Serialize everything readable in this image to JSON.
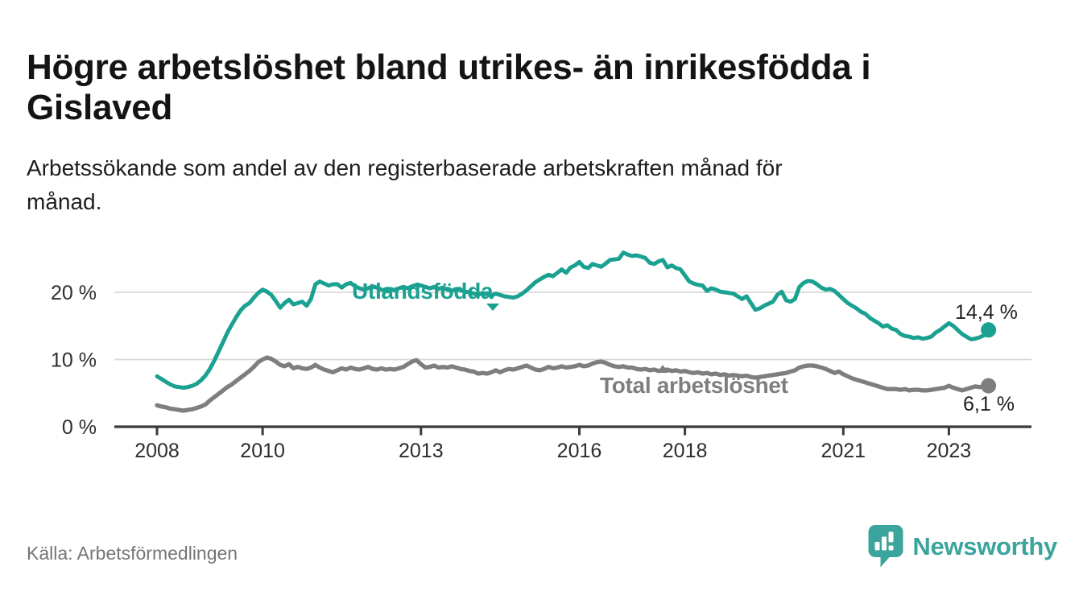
{
  "header": {
    "title": "Högre arbetslöshet bland utrikes- än inrikesfödda i Gislaved",
    "subtitle": "Arbetssökande som andel av den registerbaserade arbetskraften månad för månad."
  },
  "footer": {
    "source": "Källa: Arbetsförmedlingen",
    "brand": "Newsworthy",
    "logo_icon": "newsworthy-pin-barchart-icon",
    "brand_color": "#3ba49c"
  },
  "chart_data": {
    "type": "line",
    "title": "Högre arbetslöshet bland utrikes- än inrikesfödda i Gislaved",
    "x_unit": "month",
    "x_range": [
      "2008-01",
      "2023-10"
    ],
    "grid": "horizontal",
    "colors": {
      "axis": "#3a3a3a",
      "gridline": "#d9d9d9",
      "tick_text": "#2e2e2e"
    },
    "x_axis": {
      "ticks": [
        {
          "year": 2008,
          "label": "2008"
        },
        {
          "year": 2010,
          "label": "2010"
        },
        {
          "year": 2013,
          "label": "2013"
        },
        {
          "year": 2016,
          "label": "2016"
        },
        {
          "year": 2018,
          "label": "2018"
        },
        {
          "year": 2021,
          "label": "2021"
        },
        {
          "year": 2023,
          "label": "2023"
        }
      ]
    },
    "y_axis": {
      "ticks": [
        {
          "value": 0,
          "label": "0 %"
        },
        {
          "value": 10,
          "label": "10 %"
        },
        {
          "value": 20,
          "label": "20 %"
        }
      ],
      "gridline_values": [
        10,
        20
      ],
      "ylim": [
        0,
        30
      ]
    },
    "series": [
      {
        "name": "Utlandsfödda",
        "color": "#1aa191",
        "end_label": "14,4 %",
        "end_value": 14.4,
        "values": [
          7.5,
          7.1,
          6.7,
          6.3,
          6.0,
          5.9,
          5.8,
          5.9,
          6.1,
          6.4,
          6.9,
          7.6,
          8.6,
          9.8,
          11.2,
          12.6,
          14.0,
          15.2,
          16.3,
          17.3,
          18.0,
          18.4,
          19.2,
          19.9,
          20.4,
          20.1,
          19.6,
          18.7,
          17.7,
          18.4,
          18.9,
          18.2,
          18.4,
          18.6,
          18.0,
          19.0,
          21.2,
          21.6,
          21.3,
          21.0,
          21.2,
          21.2,
          20.7,
          21.2,
          21.4,
          20.9,
          20.6,
          20.4,
          20.6,
          20.9,
          20.7,
          20.4,
          20.2,
          20.5,
          20.3,
          20.6,
          20.8,
          20.6,
          20.9,
          21.1,
          21.0,
          20.8,
          20.6,
          20.8,
          20.5,
          20.7,
          20.4,
          20.2,
          20.5,
          20.3,
          20.1,
          20.0,
          19.8,
          19.6,
          19.9,
          19.7,
          19.5,
          19.8,
          19.6,
          19.4,
          19.3,
          19.2,
          19.4,
          19.8,
          20.3,
          20.9,
          21.5,
          21.9,
          22.3,
          22.6,
          22.4,
          22.9,
          23.4,
          22.9,
          23.7,
          24.0,
          24.5,
          23.8,
          23.6,
          24.2,
          24.0,
          23.8,
          24.3,
          24.8,
          24.9,
          25.0,
          25.9,
          25.6,
          25.4,
          25.5,
          25.3,
          25.1,
          24.4,
          24.2,
          24.6,
          24.8,
          23.7,
          24.0,
          23.6,
          23.4,
          22.5,
          21.6,
          21.3,
          21.1,
          21.0,
          20.2,
          20.6,
          20.4,
          20.1,
          20.0,
          19.9,
          19.8,
          19.4,
          19.0,
          19.4,
          18.4,
          17.4,
          17.6,
          18.0,
          18.3,
          18.6,
          19.6,
          20.1,
          18.8,
          18.6,
          19.0,
          20.8,
          21.4,
          21.7,
          21.6,
          21.2,
          20.7,
          20.4,
          20.5,
          20.2,
          19.6,
          19.0,
          18.4,
          18.0,
          17.6,
          17.1,
          16.8,
          16.2,
          15.8,
          15.4,
          14.9,
          15.1,
          14.6,
          14.4,
          13.8,
          13.5,
          13.4,
          13.2,
          13.3,
          13.1,
          13.2,
          13.4,
          14.0,
          14.4,
          14.9,
          15.4,
          15.0,
          14.4,
          13.8,
          13.4,
          13.0,
          13.1,
          13.3,
          13.6,
          14.4
        ]
      },
      {
        "name": "Total arbetslöshet",
        "color": "#7e7e7e",
        "end_label": "6,1 %",
        "end_value": 6.1,
        "values": [
          3.2,
          3.0,
          2.9,
          2.7,
          2.6,
          2.5,
          2.4,
          2.5,
          2.6,
          2.8,
          3.0,
          3.3,
          3.9,
          4.4,
          4.9,
          5.4,
          5.9,
          6.3,
          6.8,
          7.3,
          7.8,
          8.3,
          8.9,
          9.6,
          10.0,
          10.3,
          10.1,
          9.7,
          9.2,
          9.0,
          9.3,
          8.7,
          8.9,
          8.7,
          8.6,
          8.8,
          9.2,
          8.8,
          8.5,
          8.3,
          8.1,
          8.4,
          8.7,
          8.5,
          8.8,
          8.6,
          8.5,
          8.7,
          8.9,
          8.6,
          8.5,
          8.7,
          8.5,
          8.6,
          8.5,
          8.7,
          8.9,
          9.3,
          9.7,
          9.9,
          9.3,
          8.8,
          8.9,
          9.1,
          8.8,
          8.9,
          8.8,
          9.0,
          8.8,
          8.6,
          8.5,
          8.3,
          8.2,
          7.9,
          8.0,
          7.9,
          8.1,
          8.4,
          8.1,
          8.4,
          8.6,
          8.5,
          8.7,
          8.9,
          9.1,
          8.8,
          8.5,
          8.4,
          8.6,
          8.9,
          8.7,
          8.8,
          9.0,
          8.8,
          8.9,
          9.0,
          9.2,
          9.0,
          9.1,
          9.4,
          9.6,
          9.7,
          9.5,
          9.2,
          9.0,
          8.9,
          9.0,
          8.8,
          8.8,
          8.6,
          8.5,
          8.6,
          8.4,
          8.5,
          8.3,
          8.4,
          8.5,
          8.3,
          8.4,
          8.2,
          8.3,
          8.1,
          8.0,
          8.1,
          7.9,
          8.0,
          7.8,
          7.9,
          7.7,
          7.8,
          7.6,
          7.7,
          7.6,
          7.5,
          7.6,
          7.4,
          7.3,
          7.4,
          7.5,
          7.6,
          7.7,
          7.8,
          7.9,
          8.0,
          8.2,
          8.4,
          8.8,
          9.0,
          9.1,
          9.1,
          9.0,
          8.8,
          8.6,
          8.3,
          8.0,
          8.2,
          7.8,
          7.5,
          7.2,
          7.0,
          6.8,
          6.6,
          6.4,
          6.2,
          6.0,
          5.8,
          5.6,
          5.6,
          5.6,
          5.5,
          5.6,
          5.4,
          5.5,
          5.5,
          5.4,
          5.4,
          5.5,
          5.6,
          5.7,
          5.8,
          6.1,
          5.8,
          5.6,
          5.4,
          5.6,
          5.8,
          6.0,
          5.9,
          6.0,
          6.1
        ]
      }
    ]
  }
}
